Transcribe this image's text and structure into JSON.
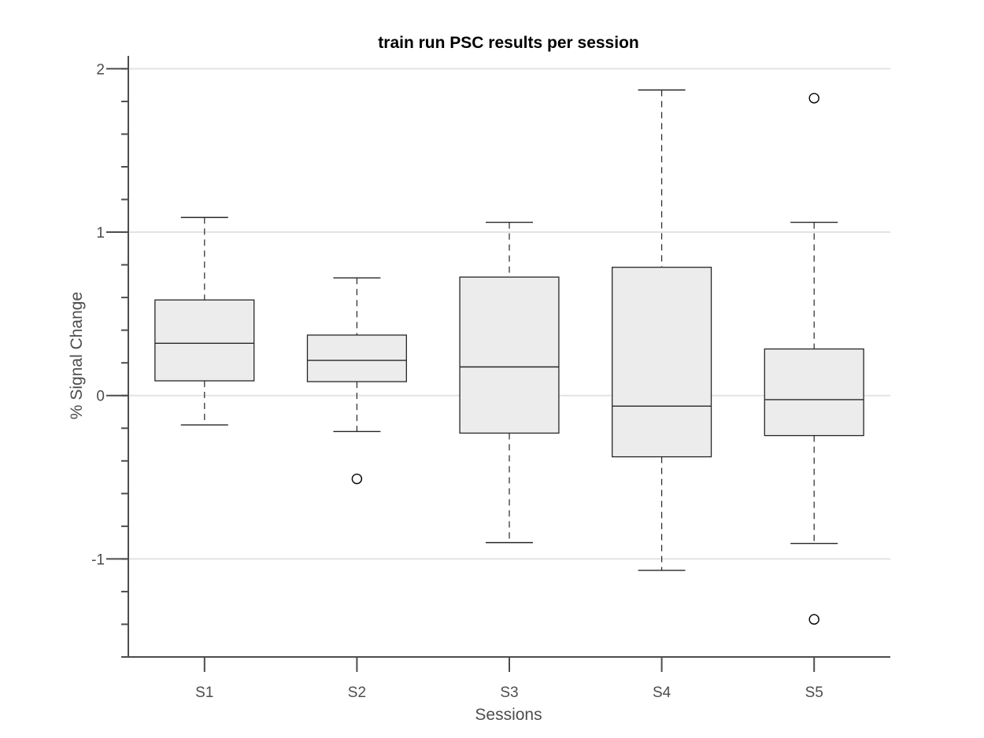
{
  "chart_data": {
    "type": "box",
    "title": "train run PSC results  per session",
    "xlabel": "Sessions",
    "ylabel": "% Signal Change",
    "ylim": [
      -1.6,
      2.05
    ],
    "yticks": [
      -1,
      0,
      1,
      2
    ],
    "y_minor_step": 0.2,
    "grid": "y-major",
    "categories": [
      "S1",
      "S2",
      "S3",
      "S4",
      "S5"
    ],
    "boxes": [
      {
        "category": "S1",
        "whisker_low": -0.18,
        "q1": 0.09,
        "median": 0.32,
        "q3": 0.585,
        "whisker_high": 1.09,
        "outliers": []
      },
      {
        "category": "S2",
        "whisker_low": -0.22,
        "q1": 0.085,
        "median": 0.215,
        "q3": 0.37,
        "whisker_high": 0.72,
        "outliers": [
          -0.51
        ]
      },
      {
        "category": "S3",
        "whisker_low": -0.9,
        "q1": -0.23,
        "median": 0.175,
        "q3": 0.725,
        "whisker_high": 1.06,
        "outliers": []
      },
      {
        "category": "S4",
        "whisker_low": -1.07,
        "q1": -0.375,
        "median": -0.065,
        "q3": 0.785,
        "whisker_high": 1.87,
        "outliers": []
      },
      {
        "category": "S5",
        "whisker_low": -0.905,
        "q1": -0.245,
        "median": -0.025,
        "q3": 0.285,
        "whisker_high": 1.06,
        "outliers": [
          1.82,
          -1.37
        ]
      }
    ],
    "colors": {
      "box_fill": "#ececec",
      "box_stroke": "#262626",
      "axis": "#4d4d4d",
      "grid": "#e3e3e3",
      "whisker": "#262626"
    }
  }
}
